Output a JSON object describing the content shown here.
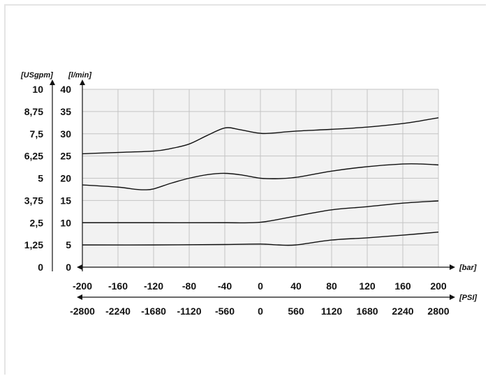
{
  "chart_data": {
    "type": "line",
    "units": {
      "flow_left": "[USgpm]",
      "flow_right": "[l/min]",
      "pressure_bar": "[bar]",
      "pressure_psi": "[PSI]"
    },
    "y_ticks_usgpm": [
      "0",
      "1,25",
      "2,5",
      "3,75",
      "5",
      "6,25",
      "7,5",
      "8,75",
      "10"
    ],
    "y_ticks_lmin": [
      "0",
      "5",
      "10",
      "15",
      "20",
      "25",
      "30",
      "35",
      "40"
    ],
    "x_ticks_bar": [
      "-200",
      "-160",
      "-120",
      "-80",
      "-40",
      "0",
      "40",
      "80",
      "120",
      "160",
      "200"
    ],
    "x_ticks_psi": [
      "-2800",
      "-2240",
      "-1680",
      "-1120",
      "-560",
      "0",
      "560",
      "1120",
      "1680",
      "2240",
      "2800"
    ],
    "xlim": [
      -200,
      200
    ],
    "ylim": [
      0,
      40
    ],
    "grid": true,
    "series": [
      {
        "x": [
          -200,
          -160,
          -120,
          -100,
          -80,
          -60,
          -40,
          -25,
          -10,
          0,
          10,
          40,
          80,
          120,
          160,
          180,
          200
        ],
        "y": [
          25.5,
          25.8,
          26.1,
          26.7,
          27.7,
          29.6,
          31.3,
          31.0,
          30.4,
          30.1,
          30.1,
          30.6,
          31.0,
          31.5,
          32.3,
          32.9,
          33.6
        ]
      },
      {
        "x": [
          -200,
          -160,
          -140,
          -130,
          -120,
          -100,
          -80,
          -60,
          -40,
          -20,
          0,
          20,
          40,
          80,
          120,
          160,
          180,
          200
        ],
        "y": [
          18.5,
          18.0,
          17.5,
          17.4,
          17.6,
          18.9,
          20.0,
          20.8,
          21.1,
          20.7,
          20.0,
          19.9,
          20.2,
          21.6,
          22.6,
          23.2,
          23.2,
          23.0
        ]
      },
      {
        "x": [
          -200,
          -120,
          -40,
          0,
          40,
          80,
          120,
          160,
          200
        ],
        "y": [
          10.0,
          10.0,
          10.0,
          10.1,
          11.5,
          12.9,
          13.6,
          14.4,
          14.9
        ]
      },
      {
        "x": [
          -200,
          -120,
          -40,
          0,
          20,
          40,
          80,
          120,
          160,
          200
        ],
        "y": [
          5.0,
          5.0,
          5.1,
          5.2,
          5.0,
          5.0,
          6.1,
          6.6,
          7.2,
          7.9
        ]
      }
    ]
  }
}
